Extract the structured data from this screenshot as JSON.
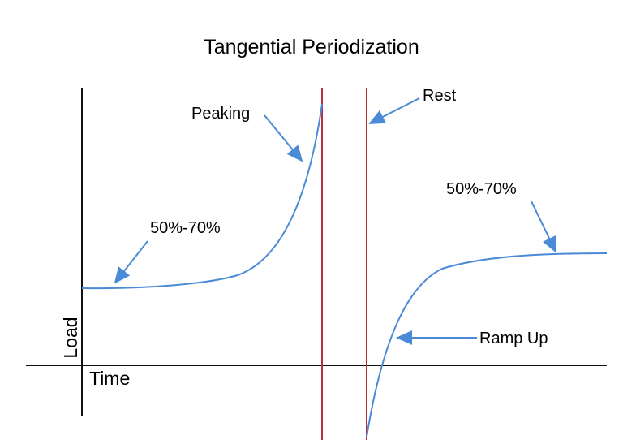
{
  "title": "Tangential Periodization",
  "axes": {
    "y_label": "Load",
    "x_label": "Time"
  },
  "annotations": {
    "peaking": "Peaking",
    "rest": "Rest",
    "left_range": "50%-70%",
    "right_range": "50%-70%",
    "ramp_up": "Ramp Up"
  },
  "colors": {
    "curve": "#4a8ad6",
    "divider": "#c02a3c",
    "axis": "#111111"
  }
}
